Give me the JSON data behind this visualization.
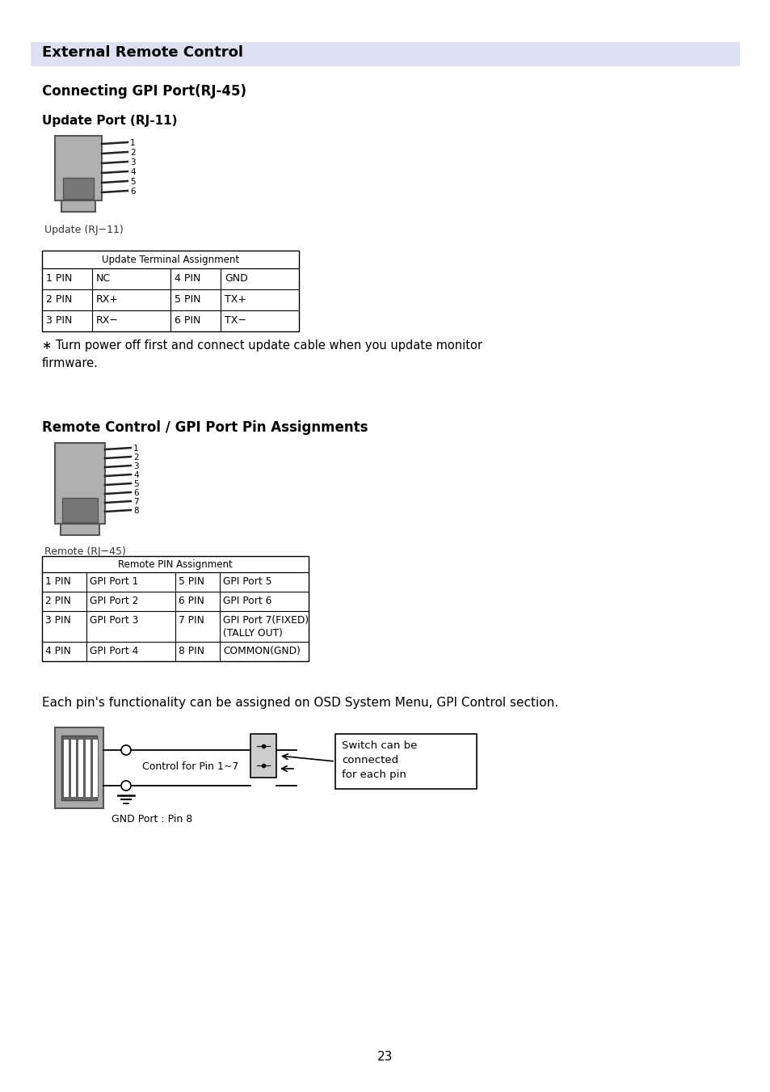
{
  "title": "External Remote Control",
  "title_bg": "#dde0f0",
  "section1": "Connecting GPI Port(RJ-45)",
  "section2": "Update Port (RJ-11)",
  "connector_label_rj11": "Update (RJ−11)",
  "connector_label_rj45": "Remote (RJ−45)",
  "update_table_title": "Update Terminal Assignment",
  "update_table": [
    [
      "1 PIN",
      "NC",
      "4 PIN",
      "GND"
    ],
    [
      "2 PIN",
      "RX+",
      "5 PIN",
      "TX+"
    ],
    [
      "3 PIN",
      "RX−",
      "6 PIN",
      "TX−"
    ]
  ],
  "note_text": "∗ Turn power off first and connect update cable when you update monitor\nfirmware.",
  "section3": "Remote Control / GPI Port Pin Assignments",
  "remote_table_title": "Remote PIN Assignment",
  "remote_table": [
    [
      "1 PIN",
      "GPI Port 1",
      "5 PIN",
      "GPI Port 5"
    ],
    [
      "2 PIN",
      "GPI Port 2",
      "6 PIN",
      "GPI Port 6"
    ],
    [
      "3 PIN",
      "GPI Port 3",
      "7 PIN",
      "GPI Port 7(FIXED)\n(TALLY OUT)"
    ],
    [
      "4 PIN",
      "GPI Port 4",
      "8 PIN",
      "COMMON(GND)"
    ]
  ],
  "each_pin_text": "Each pin's functionality can be assigned on OSD System Menu, GPI Control section.",
  "control_label": "Control for Pin 1~7",
  "gnd_label": "GND Port : Pin 8",
  "switch_label": "Switch can be\nconnected\nfor each pin",
  "page_number": "23",
  "bg_color": "#ffffff"
}
